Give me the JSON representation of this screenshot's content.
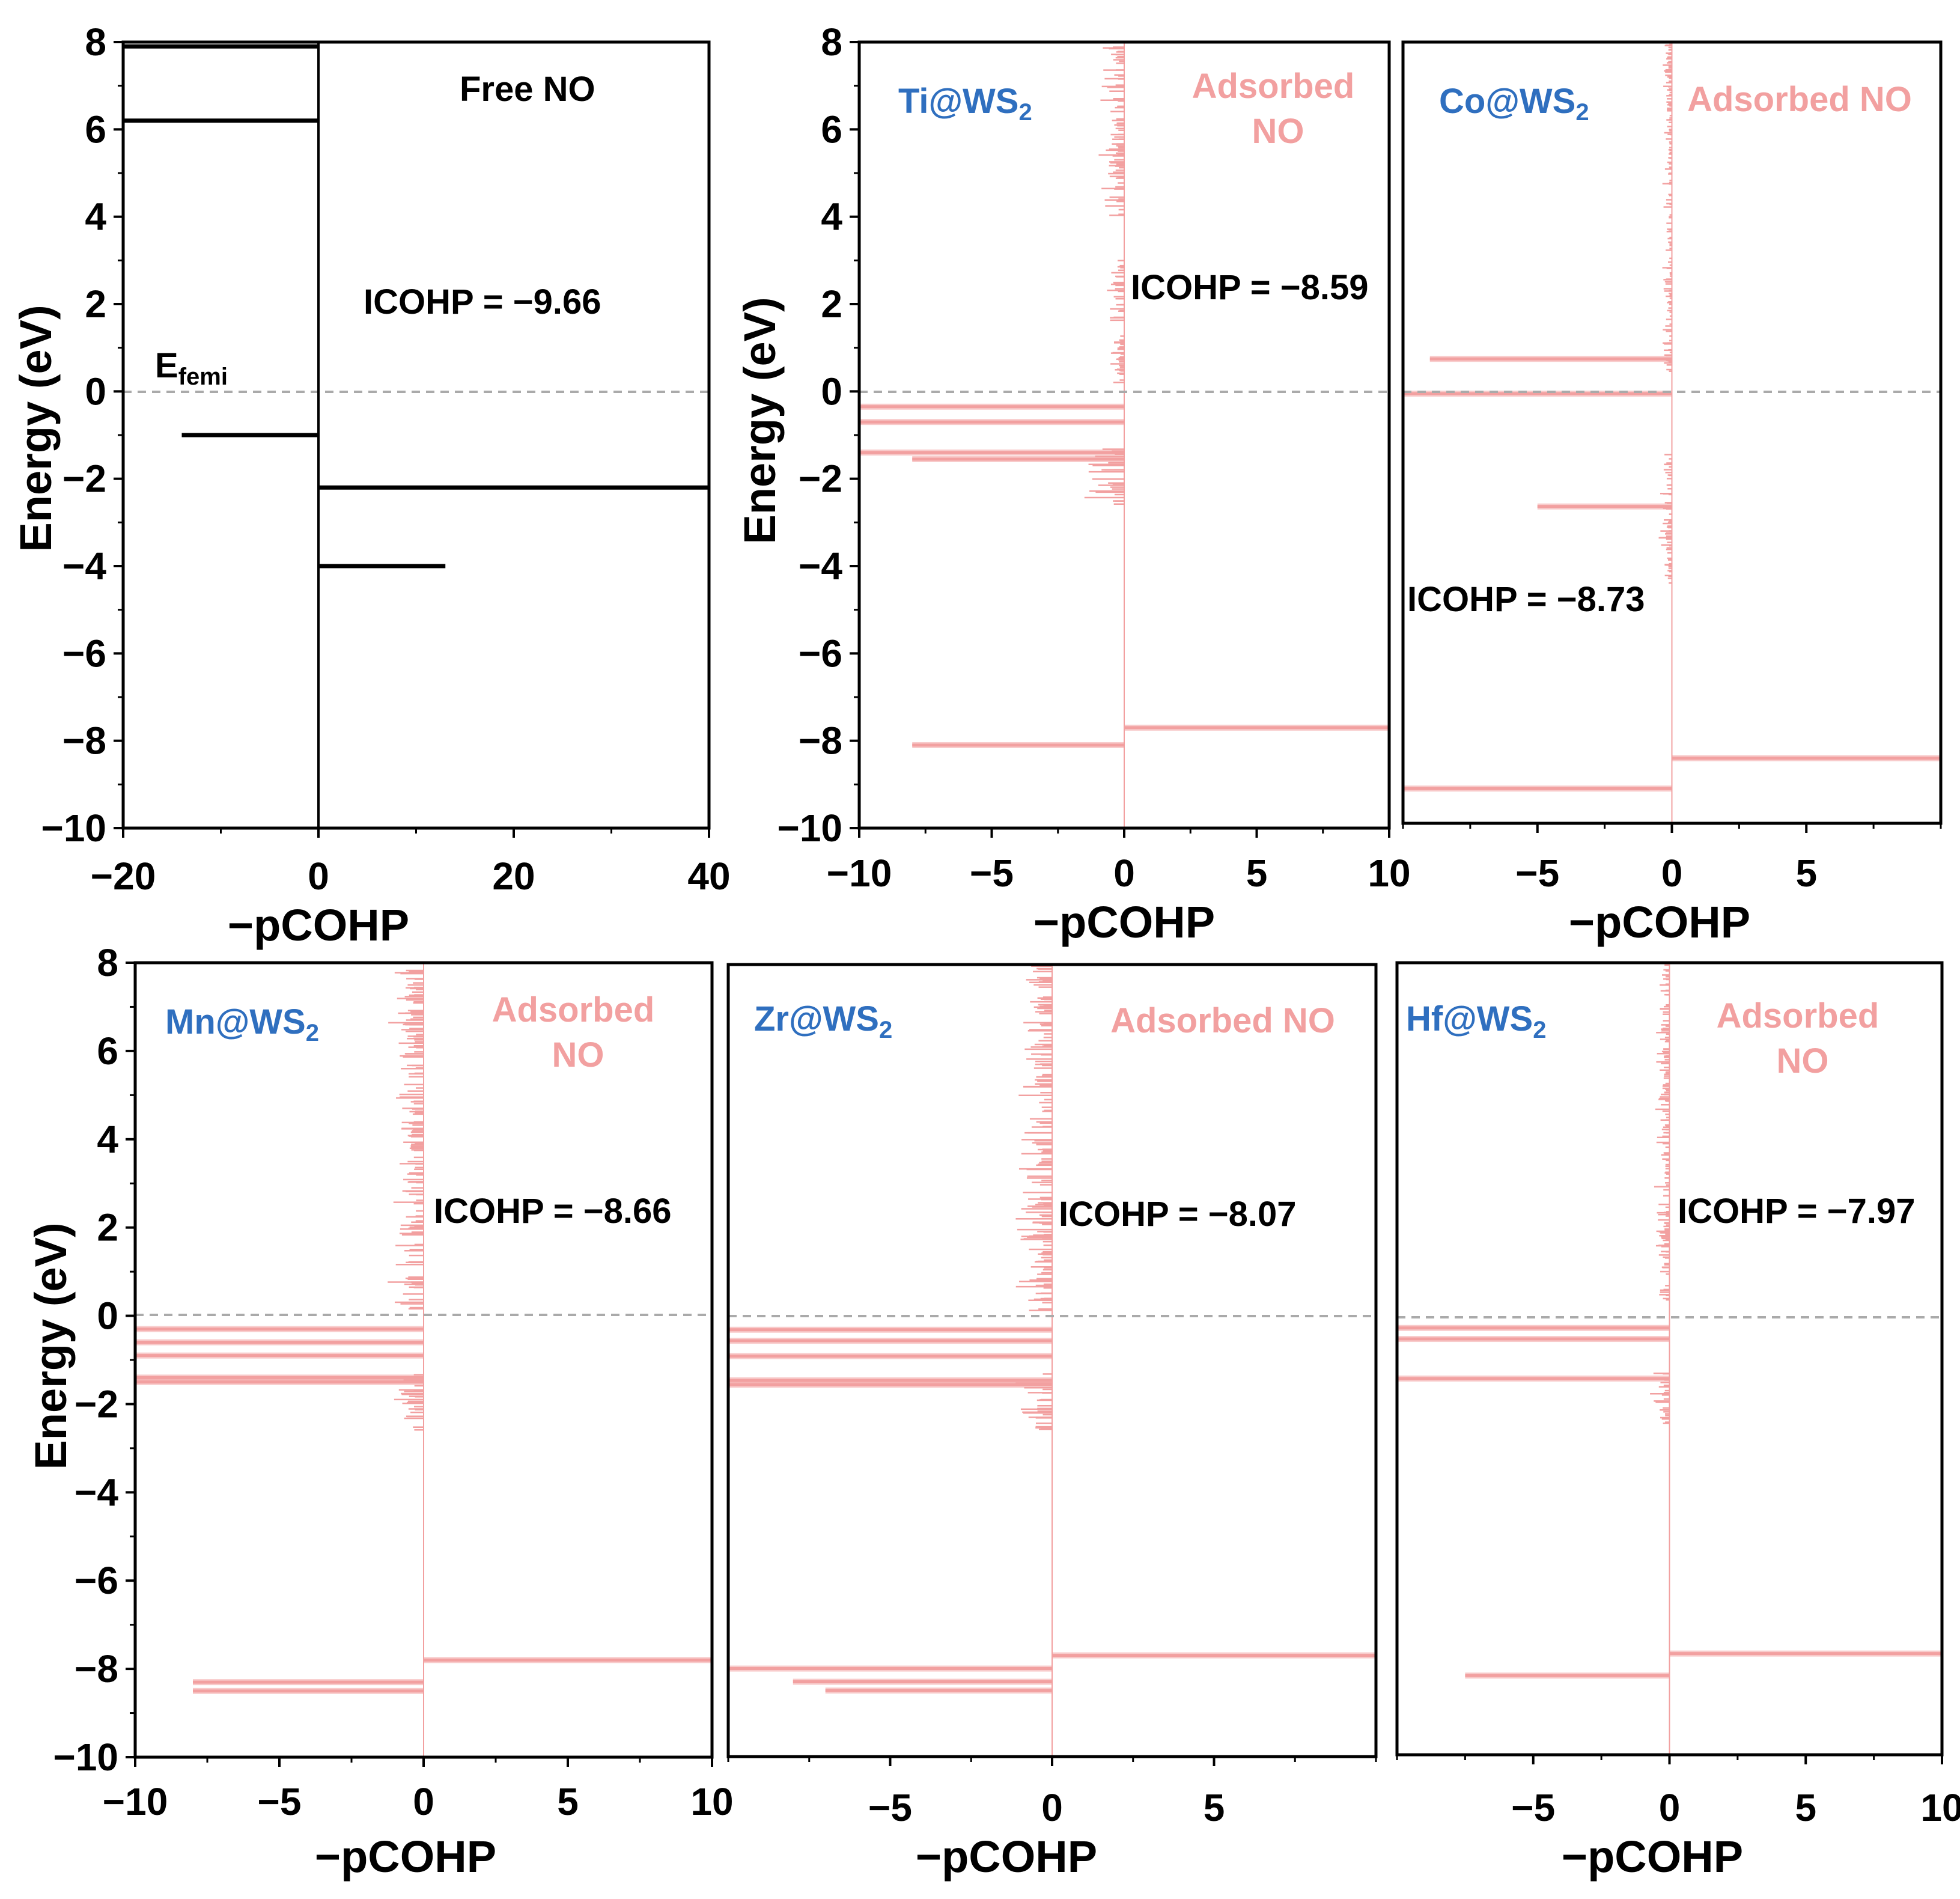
{
  "colors": {
    "pink": "#f2a0a0",
    "blue": "#2f6fbf",
    "black": "#000000",
    "fermi_line": "#aaaaaa"
  },
  "chart_data": [
    {
      "id": "free",
      "type": "line",
      "title": "Free NO",
      "xlabel": "−pCOHP",
      "ylabel": "Energy (eV)",
      "xlim": [
        -20,
        40
      ],
      "ylim": [
        -10,
        8
      ],
      "xticks": [
        -20,
        0,
        20,
        40
      ],
      "xticklabels": [
        "−20",
        "0",
        "20",
        "40"
      ],
      "yticks": [
        -10,
        -8,
        -6,
        -4,
        -2,
        0,
        2,
        4,
        6,
        8
      ],
      "yticklabels": [
        "−10",
        "−8",
        "−6",
        "−4",
        "−2",
        "0",
        "2",
        "4",
        "6",
        "8"
      ],
      "color": "#000000",
      "peaks": [
        {
          "energy": 7.9,
          "value": -20
        },
        {
          "energy": 6.2,
          "value": -20
        },
        {
          "energy": -1.0,
          "value": -14
        },
        {
          "energy": -2.2,
          "value": 40
        },
        {
          "energy": -4.0,
          "value": 13
        }
      ],
      "annotations": {
        "icohp": "ICOHP = −9.66",
        "fermi": "E",
        "fermi_sub": "femi"
      }
    },
    {
      "id": "ti",
      "type": "line",
      "system": "Ti@WS",
      "system_sub": "2",
      "label": "Adsorbed NO",
      "label_lines": [
        "Adsorbed",
        "NO"
      ],
      "xlabel": "−pCOHP",
      "ylabel": "Energy (eV)",
      "xlim": [
        -10,
        10
      ],
      "ylim": [
        -10,
        8
      ],
      "xticks": [
        -10,
        -5,
        0,
        5,
        10
      ],
      "xticklabels": [
        "−10",
        "−5",
        "0",
        "5",
        "10"
      ],
      "yticks": [
        -10,
        -8,
        -6,
        -4,
        -2,
        0,
        2,
        4,
        6,
        8
      ],
      "yticklabels": [
        "−10",
        "−8",
        "−6",
        "−4",
        "−2",
        "0",
        "2",
        "4",
        "6",
        "8"
      ],
      "color": "#f2a0a0",
      "peaks": [
        {
          "energy": -0.35,
          "value": -10
        },
        {
          "energy": -0.7,
          "value": -10
        },
        {
          "energy": -1.4,
          "value": -10
        },
        {
          "energy": -1.55,
          "value": -8
        },
        {
          "energy": -7.7,
          "value": 10
        },
        {
          "energy": -8.1,
          "value": -8
        }
      ],
      "annotations": {
        "icohp": "ICOHP = −8.59"
      }
    },
    {
      "id": "co",
      "type": "line",
      "system": "Co@WS",
      "system_sub": "2",
      "label": "Adsorbed  NO",
      "label_lines": [
        "Adsorbed  NO"
      ],
      "xlabel": "−pCOHP",
      "xlim": [
        -10,
        10
      ],
      "ylim": [
        -10,
        8
      ],
      "xticks": [
        -5,
        0,
        5
      ],
      "xticklabels": [
        "−5",
        "0",
        "5"
      ],
      "color": "#f2a0a0",
      "peaks": [
        {
          "energy": 0.7,
          "value": -9
        },
        {
          "energy": -0.1,
          "value": -10
        },
        {
          "energy": -2.7,
          "value": -5
        },
        {
          "energy": -8.5,
          "value": 10
        },
        {
          "energy": -9.2,
          "value": -10
        }
      ],
      "annotations": {
        "icohp": "ICOHP = −8.73"
      }
    },
    {
      "id": "mn",
      "type": "line",
      "system": "Mn@WS",
      "system_sub": "2",
      "label": "Adsorbed NO",
      "label_lines": [
        "Adsorbed",
        "NO"
      ],
      "xlabel": "−pCOHP",
      "ylabel": "Energy (eV)",
      "xlim": [
        -10,
        10
      ],
      "ylim": [
        -10,
        8
      ],
      "xticks": [
        -10,
        -5,
        0,
        5,
        10
      ],
      "xticklabels": [
        "−10",
        "−5",
        "0",
        "5",
        "10"
      ],
      "yticks": [
        -10,
        -8,
        -6,
        -4,
        -2,
        0,
        2,
        4,
        6,
        8
      ],
      "yticklabels": [
        "−10",
        "−8",
        "−6",
        "−4",
        "−2",
        "0",
        "2",
        "4",
        "6",
        "8"
      ],
      "color": "#f2a0a0",
      "peaks": [
        {
          "energy": -0.3,
          "value": -10
        },
        {
          "energy": -0.6,
          "value": -10
        },
        {
          "energy": -0.9,
          "value": -10
        },
        {
          "energy": -1.4,
          "value": -10
        },
        {
          "energy": -1.5,
          "value": -10
        },
        {
          "energy": -7.8,
          "value": 10
        },
        {
          "energy": -8.3,
          "value": -8
        },
        {
          "energy": -8.5,
          "value": -8
        }
      ],
      "annotations": {
        "icohp": "ICOHP = −8.66"
      }
    },
    {
      "id": "zr",
      "type": "line",
      "system": "Zr@WS",
      "system_sub": "2",
      "label": "Adsorbed  NO",
      "label_lines": [
        "Adsorbed  NO"
      ],
      "xlabel": "−pCOHP",
      "xlim": [
        -10,
        10
      ],
      "ylim": [
        -10,
        8
      ],
      "xticks": [
        -5,
        0,
        5
      ],
      "xticklabels": [
        "−5",
        "0",
        "5"
      ],
      "color": "#f2a0a0",
      "peaks": [
        {
          "energy": -0.3,
          "value": -10
        },
        {
          "energy": -0.55,
          "value": -10
        },
        {
          "energy": -0.9,
          "value": -10
        },
        {
          "energy": -1.45,
          "value": -10
        },
        {
          "energy": -1.55,
          "value": -10
        },
        {
          "energy": -7.7,
          "value": 10
        },
        {
          "energy": -8.0,
          "value": -10
        },
        {
          "energy": -8.3,
          "value": -8
        },
        {
          "energy": -8.5,
          "value": -7
        }
      ],
      "annotations": {
        "icohp": "ICOHP = −8.07"
      }
    },
    {
      "id": "hf",
      "type": "line",
      "system": "Hf@WS",
      "system_sub": "2",
      "label": "Adsorbed NO",
      "label_lines": [
        "Adsorbed",
        "NO"
      ],
      "xlabel": "−pCOHP",
      "xlim": [
        -10,
        10
      ],
      "ylim": [
        -10,
        8
      ],
      "xticks": [
        -5,
        0,
        5,
        10
      ],
      "xticklabels": [
        "−5",
        "0",
        "5",
        "10"
      ],
      "color": "#f2a0a0",
      "peaks": [
        {
          "energy": -0.3,
          "value": -10
        },
        {
          "energy": -0.55,
          "value": -10
        },
        {
          "energy": -1.45,
          "value": -10
        },
        {
          "energy": -7.7,
          "value": 10
        },
        {
          "energy": -8.2,
          "value": -7.5
        }
      ],
      "annotations": {
        "icohp": "ICOHP = −7.97"
      }
    }
  ]
}
